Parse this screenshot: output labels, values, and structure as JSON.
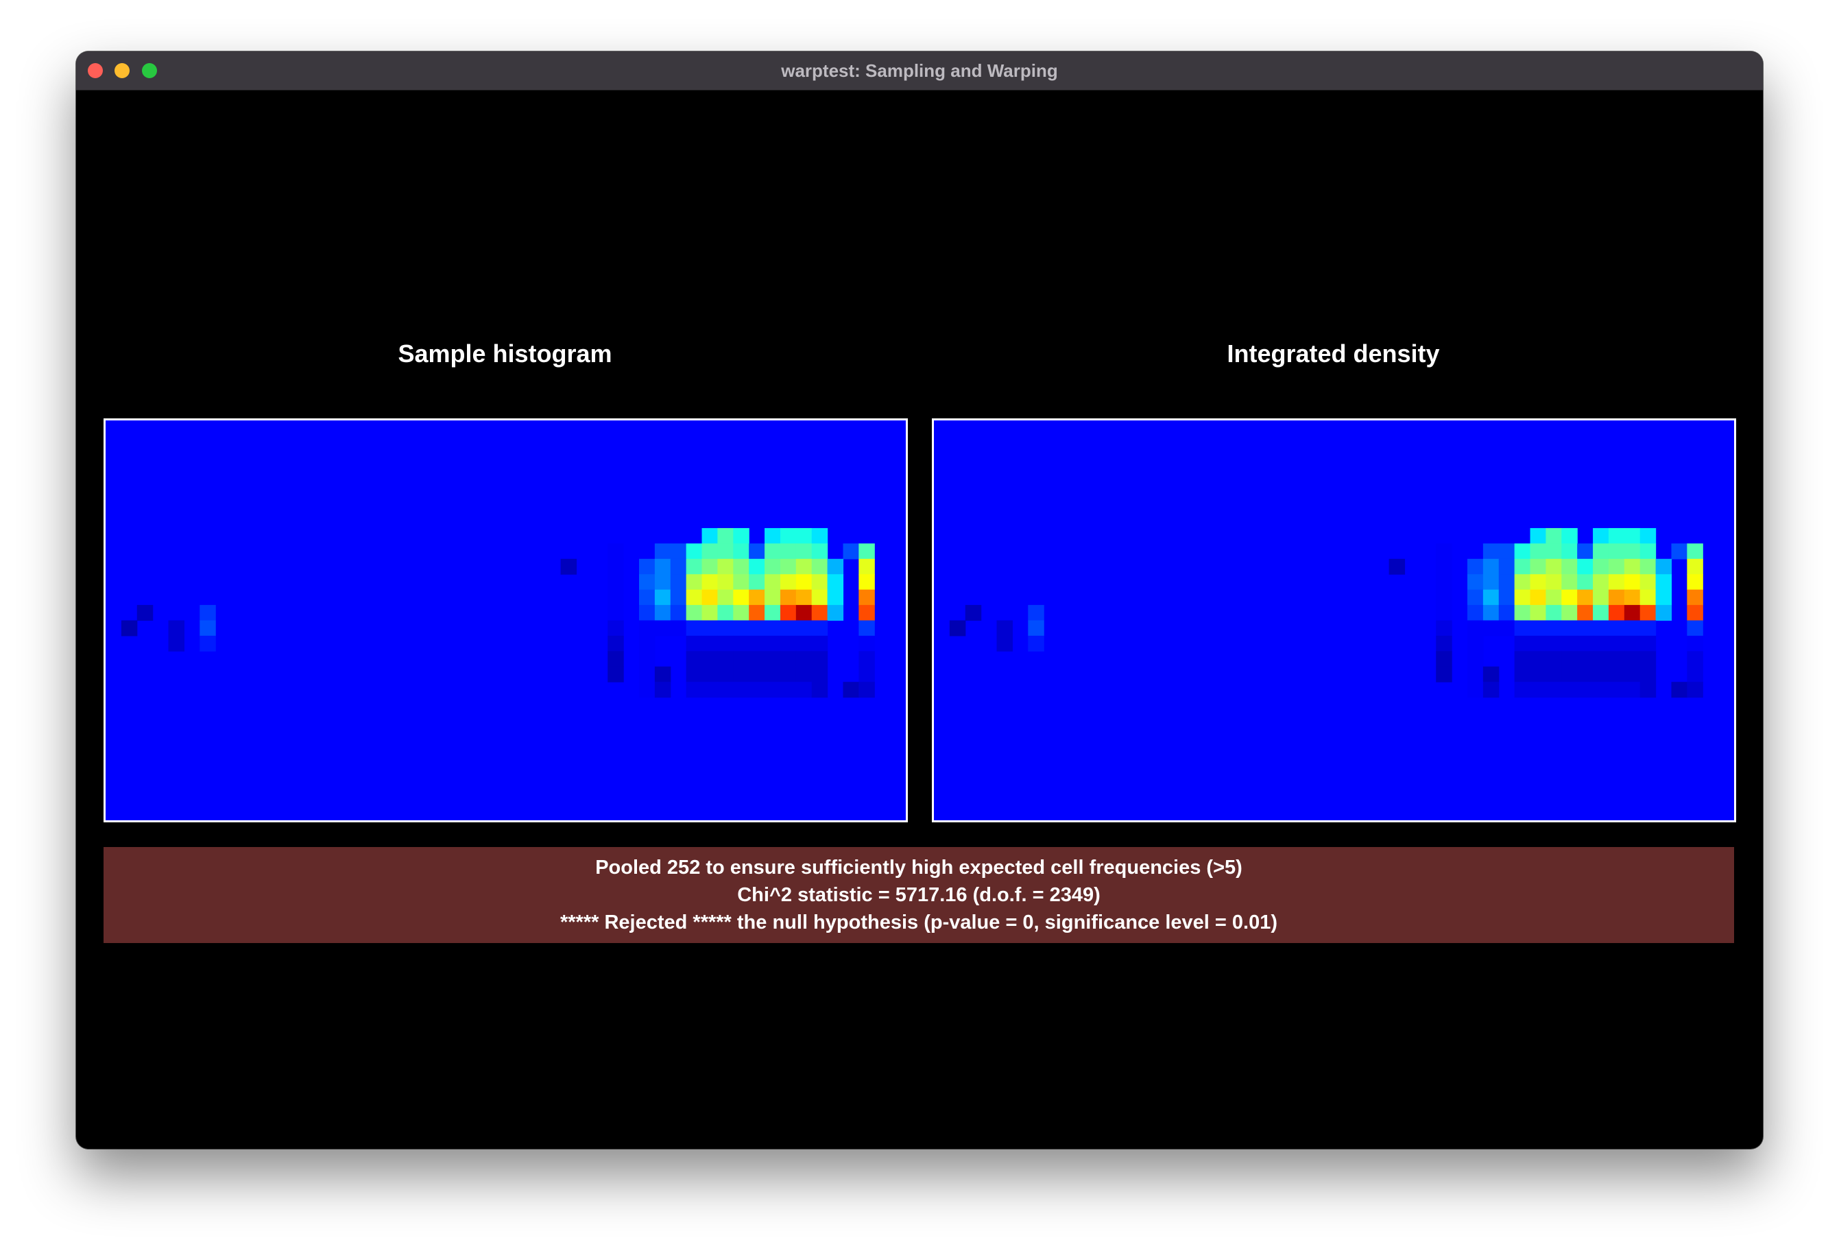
{
  "window": {
    "title": "warptest: Sampling and Warping"
  },
  "panels": {
    "left_label": "Sample histogram",
    "right_label": "Integrated density"
  },
  "status": {
    "line1": "Pooled 252 to ensure sufficiently high expected cell frequencies (>5)",
    "line2": "Chi^2 statistic = 5717.16 (d.o.f. = 2349)",
    "line3": "***** Rejected ***** the null hypothesis (p-value = 0, significance level = 0.01)",
    "background_color": "#632a29"
  },
  "colors": {
    "background_cell": "#0000ff",
    "frame": "#ffffff"
  },
  "heatmap": {
    "cols": 51,
    "rows": 26,
    "colormap": "jet",
    "cells": [
      [
        38,
        7,
        0.35
      ],
      [
        39,
        7,
        0.45
      ],
      [
        40,
        7,
        0.4
      ],
      [
        42,
        7,
        0.35
      ],
      [
        43,
        7,
        0.4
      ],
      [
        44,
        7,
        0.4
      ],
      [
        45,
        7,
        0.35
      ],
      [
        32,
        8,
        0.12
      ],
      [
        35,
        8,
        0.2
      ],
      [
        36,
        8,
        0.2
      ],
      [
        37,
        8,
        0.4
      ],
      [
        38,
        8,
        0.45
      ],
      [
        39,
        8,
        0.45
      ],
      [
        40,
        8,
        0.42
      ],
      [
        41,
        8,
        0.2
      ],
      [
        42,
        8,
        0.45
      ],
      [
        43,
        8,
        0.45
      ],
      [
        44,
        8,
        0.45
      ],
      [
        45,
        8,
        0.42
      ],
      [
        47,
        8,
        0.2
      ],
      [
        48,
        8,
        0.45
      ],
      [
        29,
        9,
        0.06
      ],
      [
        32,
        9,
        0.12
      ],
      [
        34,
        9,
        0.2
      ],
      [
        35,
        9,
        0.25
      ],
      [
        36,
        9,
        0.2
      ],
      [
        37,
        9,
        0.45
      ],
      [
        38,
        9,
        0.5
      ],
      [
        39,
        9,
        0.55
      ],
      [
        40,
        9,
        0.5
      ],
      [
        41,
        9,
        0.4
      ],
      [
        42,
        9,
        0.48
      ],
      [
        43,
        9,
        0.5
      ],
      [
        44,
        9,
        0.55
      ],
      [
        45,
        9,
        0.5
      ],
      [
        46,
        9,
        0.3
      ],
      [
        48,
        9,
        0.6
      ],
      [
        32,
        10,
        0.12
      ],
      [
        34,
        10,
        0.22
      ],
      [
        35,
        10,
        0.25
      ],
      [
        36,
        10,
        0.2
      ],
      [
        37,
        10,
        0.55
      ],
      [
        38,
        10,
        0.6
      ],
      [
        39,
        10,
        0.58
      ],
      [
        40,
        10,
        0.52
      ],
      [
        41,
        10,
        0.45
      ],
      [
        42,
        10,
        0.55
      ],
      [
        43,
        10,
        0.6
      ],
      [
        44,
        10,
        0.62
      ],
      [
        45,
        10,
        0.58
      ],
      [
        46,
        10,
        0.35
      ],
      [
        48,
        10,
        0.62
      ],
      [
        32,
        11,
        0.12
      ],
      [
        34,
        11,
        0.2
      ],
      [
        35,
        11,
        0.3
      ],
      [
        36,
        11,
        0.2
      ],
      [
        37,
        11,
        0.6
      ],
      [
        38,
        11,
        0.65
      ],
      [
        39,
        11,
        0.55
      ],
      [
        40,
        11,
        0.62
      ],
      [
        41,
        11,
        0.7
      ],
      [
        42,
        11,
        0.55
      ],
      [
        43,
        11,
        0.72
      ],
      [
        44,
        11,
        0.7
      ],
      [
        45,
        11,
        0.6
      ],
      [
        46,
        11,
        0.35
      ],
      [
        48,
        11,
        0.75
      ],
      [
        2,
        12,
        0.06
      ],
      [
        6,
        12,
        0.18
      ],
      [
        32,
        12,
        0.12
      ],
      [
        34,
        12,
        0.18
      ],
      [
        35,
        12,
        0.25
      ],
      [
        36,
        12,
        0.18
      ],
      [
        37,
        12,
        0.5
      ],
      [
        38,
        12,
        0.55
      ],
      [
        39,
        12,
        0.45
      ],
      [
        40,
        12,
        0.52
      ],
      [
        41,
        12,
        0.78
      ],
      [
        42,
        12,
        0.45
      ],
      [
        43,
        12,
        0.82
      ],
      [
        44,
        12,
        0.95
      ],
      [
        45,
        12,
        0.8
      ],
      [
        46,
        12,
        0.3
      ],
      [
        48,
        12,
        0.8
      ],
      [
        1,
        13,
        0.05
      ],
      [
        4,
        13,
        0.08
      ],
      [
        6,
        13,
        0.2
      ],
      [
        32,
        13,
        0.1
      ],
      [
        34,
        13,
        0.12
      ],
      [
        35,
        13,
        0.12
      ],
      [
        36,
        13,
        0.12
      ],
      [
        37,
        13,
        0.15
      ],
      [
        38,
        13,
        0.15
      ],
      [
        39,
        13,
        0.15
      ],
      [
        40,
        13,
        0.15
      ],
      [
        41,
        13,
        0.15
      ],
      [
        42,
        13,
        0.15
      ],
      [
        43,
        13,
        0.15
      ],
      [
        44,
        13,
        0.15
      ],
      [
        45,
        13,
        0.15
      ],
      [
        48,
        13,
        0.18
      ],
      [
        4,
        14,
        0.08
      ],
      [
        6,
        14,
        0.15
      ],
      [
        32,
        14,
        0.08
      ],
      [
        34,
        14,
        0.12
      ],
      [
        37,
        14,
        0.1
      ],
      [
        38,
        14,
        0.1
      ],
      [
        39,
        14,
        0.1
      ],
      [
        40,
        14,
        0.1
      ],
      [
        41,
        14,
        0.1
      ],
      [
        42,
        14,
        0.1
      ],
      [
        43,
        14,
        0.1
      ],
      [
        44,
        14,
        0.1
      ],
      [
        45,
        14,
        0.1
      ],
      [
        48,
        14,
        0.12
      ],
      [
        32,
        15,
        0.06
      ],
      [
        34,
        15,
        0.12
      ],
      [
        37,
        15,
        0.08
      ],
      [
        38,
        15,
        0.08
      ],
      [
        39,
        15,
        0.08
      ],
      [
        40,
        15,
        0.08
      ],
      [
        41,
        15,
        0.08
      ],
      [
        42,
        15,
        0.08
      ],
      [
        43,
        15,
        0.08
      ],
      [
        44,
        15,
        0.08
      ],
      [
        45,
        15,
        0.08
      ],
      [
        48,
        15,
        0.1
      ],
      [
        32,
        16,
        0.06
      ],
      [
        34,
        16,
        0.12
      ],
      [
        35,
        16,
        0.06
      ],
      [
        37,
        16,
        0.08
      ],
      [
        38,
        16,
        0.08
      ],
      [
        39,
        16,
        0.08
      ],
      [
        40,
        16,
        0.08
      ],
      [
        41,
        16,
        0.08
      ],
      [
        42,
        16,
        0.08
      ],
      [
        43,
        16,
        0.08
      ],
      [
        44,
        16,
        0.08
      ],
      [
        45,
        16,
        0.08
      ],
      [
        48,
        16,
        0.1
      ],
      [
        34,
        17,
        0.12
      ],
      [
        35,
        17,
        0.08
      ],
      [
        37,
        17,
        0.1
      ],
      [
        38,
        17,
        0.1
      ],
      [
        39,
        17,
        0.1
      ],
      [
        40,
        17,
        0.1
      ],
      [
        41,
        17,
        0.1
      ],
      [
        42,
        17,
        0.1
      ],
      [
        43,
        17,
        0.1
      ],
      [
        44,
        17,
        0.1
      ],
      [
        45,
        17,
        0.08
      ],
      [
        47,
        17,
        0.06
      ],
      [
        48,
        17,
        0.08
      ]
    ]
  }
}
